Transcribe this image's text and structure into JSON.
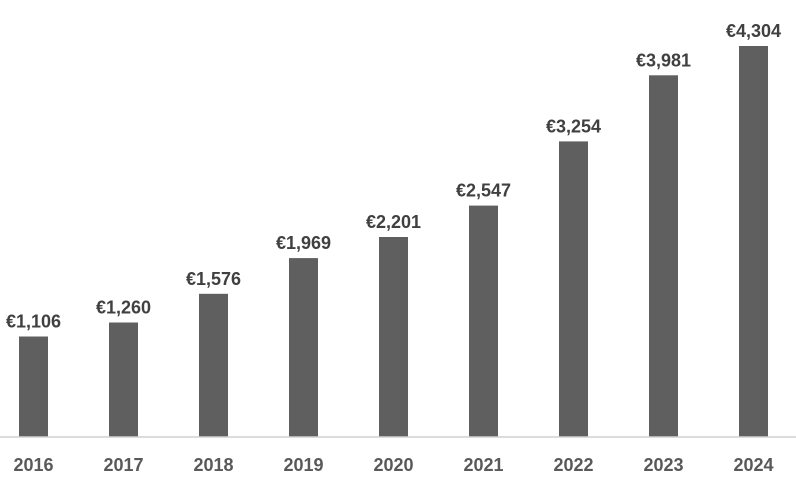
{
  "chart_data": {
    "type": "bar",
    "categories": [
      "2016",
      "2017",
      "2018",
      "2019",
      "2020",
      "2021",
      "2022",
      "2023",
      "2024"
    ],
    "values": [
      1106,
      1260,
      1576,
      1969,
      2201,
      2547,
      3254,
      3981,
      4304
    ],
    "value_labels": [
      "€1,106",
      "€1,260",
      "€1,576",
      "€1,969",
      "€2,201",
      "€2,547",
      "€3,254",
      "€3,981",
      "€4,304"
    ],
    "ylim": [
      0,
      4304
    ],
    "grid": false,
    "legend": "none",
    "colors": {
      "bar": "#5f5f5f",
      "axis": "#d0d0d0",
      "label": "#404040",
      "tick": "#595959"
    }
  }
}
